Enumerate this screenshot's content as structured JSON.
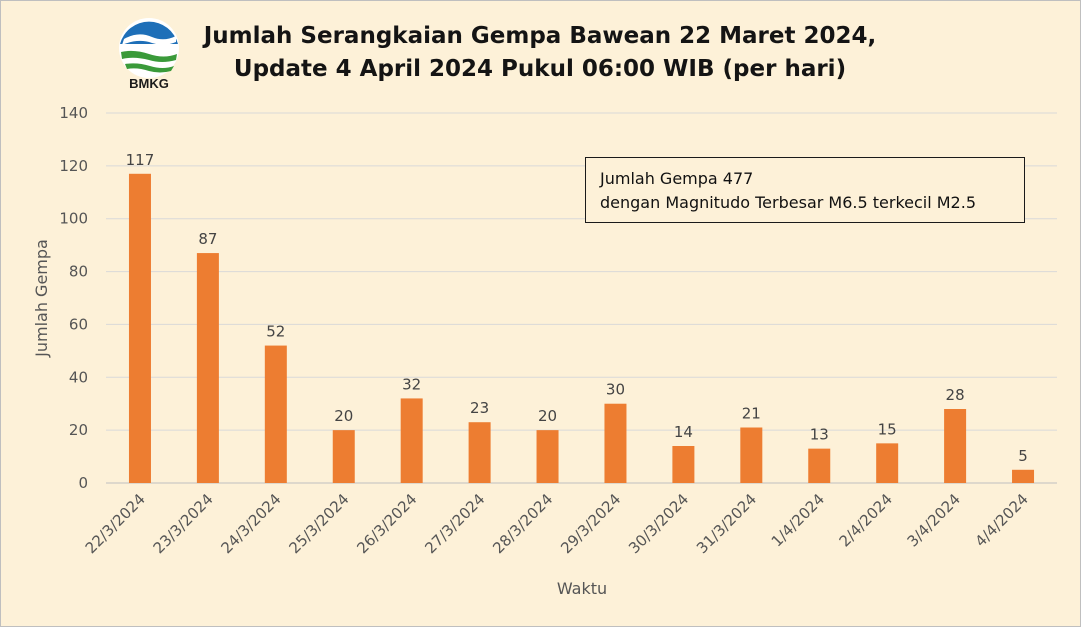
{
  "logo": {
    "text": "BMKG"
  },
  "title_lines": [
    "Jumlah Serangkaian Gempa Bawean 22 Maret 2024,",
    "Update 4 April 2024 Pukul 06:00 WIB (per hari)"
  ],
  "infobox": {
    "line1": "Jumlah Gempa 477",
    "line2": "dengan Magnitudo Terbesar M6.5 terkecil M2.5"
  },
  "colors": {
    "bar": "#ed7d31",
    "background": "#fdf1d8",
    "grid": "#d9d9d9"
  },
  "chart_data": {
    "type": "bar",
    "categories": [
      "22/3/2024",
      "23/3/2024",
      "24/3/2024",
      "25/3/2024",
      "26/3/2024",
      "27/3/2024",
      "28/3/2024",
      "29/3/2024",
      "30/3/2024",
      "31/3/2024",
      "1/4/2024",
      "2/4/2024",
      "3/4/2024",
      "4/4/2024"
    ],
    "values": [
      117,
      87,
      52,
      20,
      32,
      23,
      20,
      30,
      14,
      21,
      13,
      15,
      28,
      5
    ],
    "xlabel": "Waktu",
    "ylabel": "Jumlah Gempa",
    "ylim": [
      0,
      140
    ],
    "yticks": [
      0,
      20,
      40,
      60,
      80,
      100,
      120,
      140
    ],
    "grid": true,
    "data_labels": true,
    "legend": "none"
  }
}
